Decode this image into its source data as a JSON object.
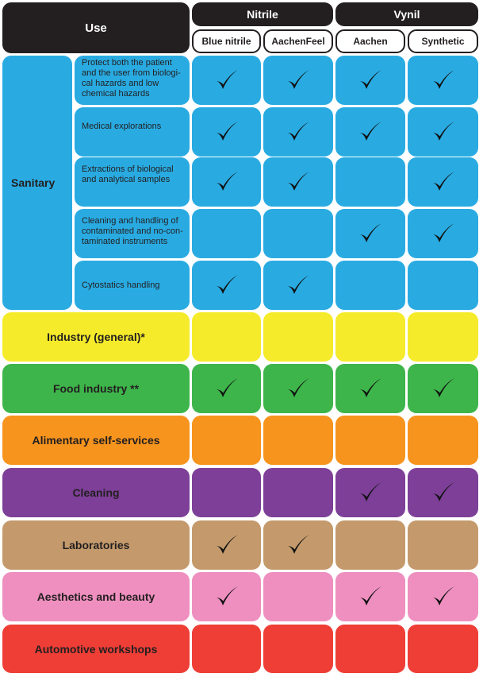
{
  "header": {
    "use": "Use",
    "groups": [
      {
        "name": "Nitrile",
        "products": [
          "Blue nitrile",
          "AachenFeel"
        ]
      },
      {
        "name": "Vynil",
        "products": [
          "Aachen",
          "Synthetic"
        ]
      }
    ]
  },
  "chart_data": {
    "type": "table",
    "columns": [
      "Blue nitrile",
      "AachenFeel",
      "Aachen",
      "Synthetic"
    ],
    "rows": [
      {
        "category": "Sanitary",
        "sub": "Protect both the patient and the user from biologi-cal hazards and low chemical hazards",
        "checks": [
          true,
          true,
          true,
          true
        ],
        "color": "#29abe2"
      },
      {
        "category": "Sanitary",
        "sub": "Medical explorations",
        "checks": [
          true,
          true,
          true,
          true
        ],
        "color": "#29abe2"
      },
      {
        "category": "Sanitary",
        "sub": "Extractions of biological and analytical samples",
        "checks": [
          true,
          true,
          false,
          true
        ],
        "color": "#29abe2"
      },
      {
        "category": "Sanitary",
        "sub": "Cleaning and handling of contaminated and no-con-taminated instruments",
        "checks": [
          false,
          false,
          true,
          true
        ],
        "color": "#29abe2"
      },
      {
        "category": "Sanitary",
        "sub": "Cytostatics handling",
        "checks": [
          true,
          true,
          false,
          false
        ],
        "color": "#29abe2"
      },
      {
        "category": "Industry (general)*",
        "checks": [
          false,
          false,
          false,
          false
        ],
        "color": "#f5eb2a"
      },
      {
        "category": "Food industry **",
        "checks": [
          true,
          true,
          true,
          true
        ],
        "color": "#3db54a"
      },
      {
        "category": "Alimentary self-services",
        "checks": [
          false,
          false,
          false,
          false
        ],
        "color": "#f7941d"
      },
      {
        "category": "Cleaning",
        "checks": [
          false,
          false,
          true,
          true
        ],
        "color": "#7d3f98"
      },
      {
        "category": "Laboratories",
        "checks": [
          true,
          true,
          false,
          false
        ],
        "color": "#c49a6c"
      },
      {
        "category": "Aesthetics and beauty",
        "checks": [
          true,
          false,
          true,
          true
        ],
        "color": "#ee8fbf"
      },
      {
        "category": "Automotive workshops",
        "checks": [
          false,
          false,
          false,
          false
        ],
        "color": "#ee3e36"
      }
    ]
  }
}
